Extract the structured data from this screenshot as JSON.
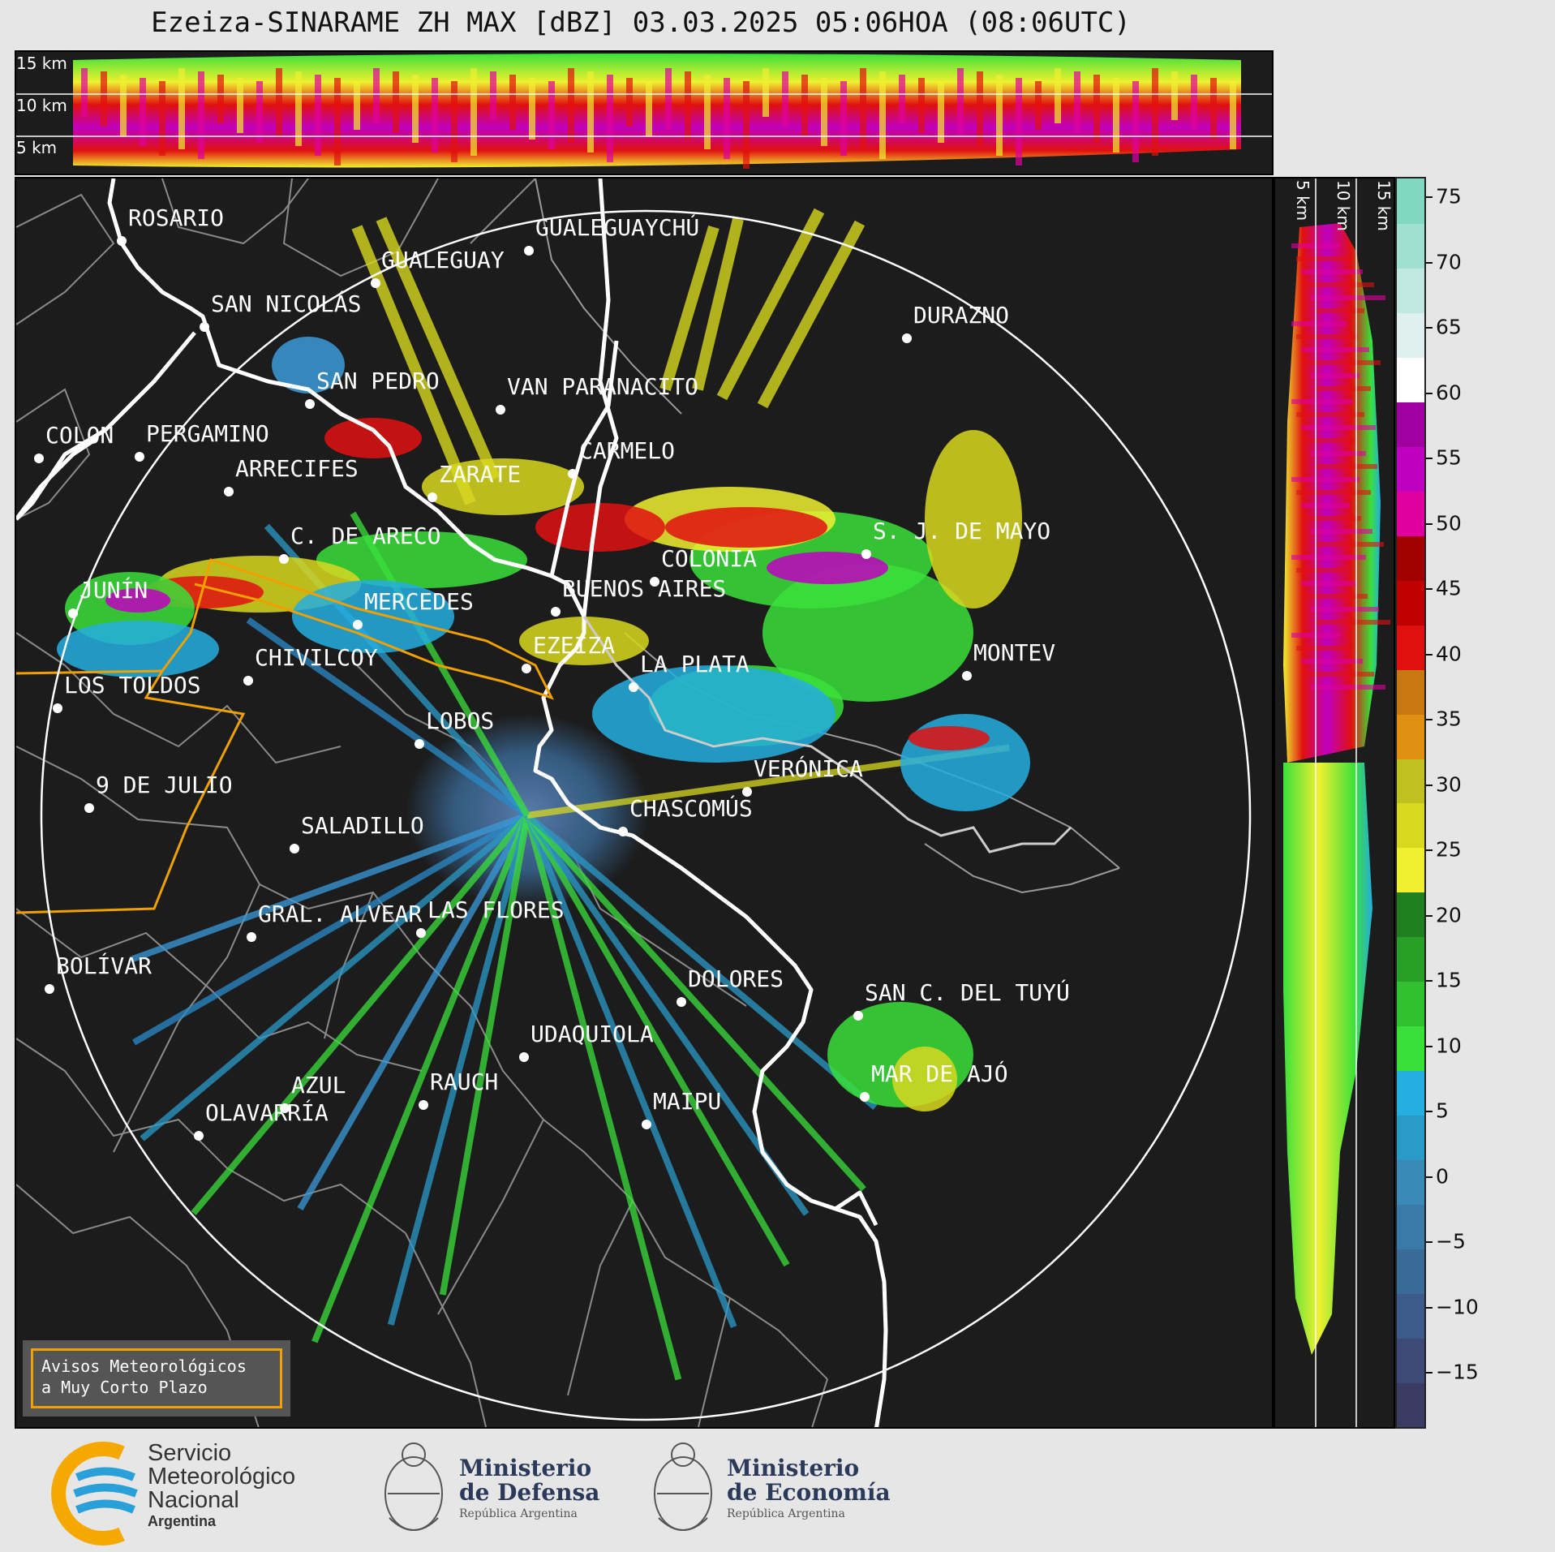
{
  "title": "Ezeiza-SINARAME ZH MAX [dBZ] 03.03.2025 05:06HOA (08:06UTC)",
  "top_altitude_labels": [
    "15 km",
    "10 km",
    "5 km"
  ],
  "side_altitude_labels": [
    "5 km",
    "10 km",
    "15 km"
  ],
  "colorbar": {
    "ticks": [
      "75",
      "70",
      "65",
      "60",
      "55",
      "50",
      "45",
      "40",
      "35",
      "30",
      "25",
      "20",
      "15",
      "10",
      "5",
      "0",
      "−5",
      "−10",
      "−15"
    ],
    "colors": [
      "#3b3c64",
      "#3d4a78",
      "#3c5a8a",
      "#3a6a98",
      "#3a7aa8",
      "#3a8ab8",
      "#2a9ac8",
      "#25aee0",
      "#3ae03a",
      "#30c030",
      "#28a028",
      "#208020",
      "#f0f030",
      "#d8d820",
      "#c0c020",
      "#e09010",
      "#c87810",
      "#e01010",
      "#c00000",
      "#a00000",
      "#e000a0",
      "#c000c0",
      "#a000a0",
      "#ffffff",
      "#e0f0ee",
      "#c0e8e0",
      "#a0e0d0",
      "#80d8c0"
    ]
  },
  "cities": [
    {
      "name": "ROSARIO"
    },
    {
      "name": "GUALEGUAYCHÚ"
    },
    {
      "name": "GUALEGUAY"
    },
    {
      "name": "SAN NICOLÁS"
    },
    {
      "name": "DURAZNO"
    },
    {
      "name": "SAN PEDRO"
    },
    {
      "name": "VAN PARANACITO"
    },
    {
      "name": "COLON"
    },
    {
      "name": "PERGAMINO"
    },
    {
      "name": "CARMELO"
    },
    {
      "name": "ARRECIFES"
    },
    {
      "name": "ZARATE"
    },
    {
      "name": "S. J. DE MAYO"
    },
    {
      "name": "C. DE ARECO"
    },
    {
      "name": "COLONIA"
    },
    {
      "name": "JUNÍN"
    },
    {
      "name": "BUENOS AIRES"
    },
    {
      "name": "MERCEDES"
    },
    {
      "name": "EZEIZA"
    },
    {
      "name": "MONTEV"
    },
    {
      "name": "LA PLATA"
    },
    {
      "name": "CHIVILCOY"
    },
    {
      "name": "LOS TOLDOS"
    },
    {
      "name": "LOBOS"
    },
    {
      "name": "VERÓNICA"
    },
    {
      "name": "9 DE JULIO"
    },
    {
      "name": "CHASCOMÚS"
    },
    {
      "name": "SALADILLO"
    },
    {
      "name": "LAS FLORES"
    },
    {
      "name": "GRAL. ALVEAR"
    },
    {
      "name": "BOLÍVAR"
    },
    {
      "name": "DOLORES"
    },
    {
      "name": "SAN C. DEL TUYÚ"
    },
    {
      "name": "UDAQUIOLA"
    },
    {
      "name": "AZUL"
    },
    {
      "name": "RAUCH"
    },
    {
      "name": "MAR DE AJÓ"
    },
    {
      "name": "OLAVARRÍA"
    },
    {
      "name": "MAIPU"
    }
  ],
  "warning_box": {
    "line1": "Avisos Meteorológicos",
    "line2": "a Muy Corto Plazo"
  },
  "footer": {
    "smn": {
      "line1": "Servicio",
      "line2": "Meteorológico",
      "line3": "Nacional",
      "line4": "Argentina"
    },
    "defensa": {
      "line1": "Ministerio",
      "line2": "de Defensa",
      "line3": "República Argentina"
    },
    "economia": {
      "line1": "Ministerio",
      "line2": "de Economía",
      "line3": "República Argentina"
    }
  }
}
